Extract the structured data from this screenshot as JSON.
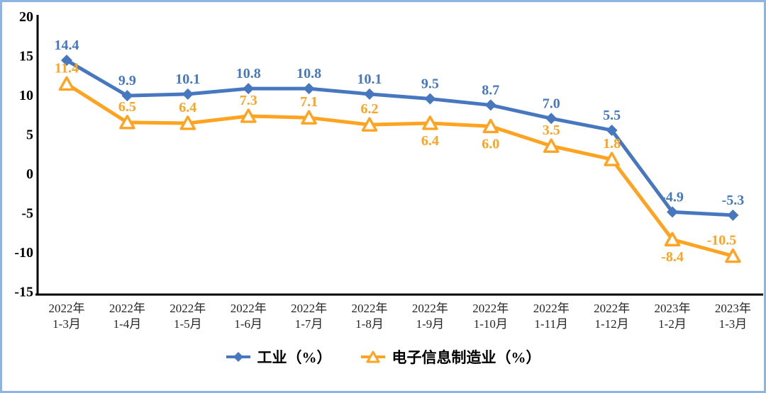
{
  "frame": {
    "border_color": "#8EB4E3",
    "background": "#FFFFFF"
  },
  "chart_data": {
    "type": "line",
    "title": "",
    "xlabel": "",
    "ylabel": "",
    "grid": false,
    "legend_position": "bottom",
    "categories": [
      {
        "line1": "2022年",
        "line2": "1-3月"
      },
      {
        "line1": "2022年",
        "line2": "1-4月"
      },
      {
        "line1": "2022年",
        "line2": "1-5月"
      },
      {
        "line1": "2022年",
        "line2": "1-6月"
      },
      {
        "line1": "2022年",
        "line2": "1-7月"
      },
      {
        "line1": "2022年",
        "line2": "1-8月"
      },
      {
        "line1": "2022年",
        "line2": "1-9月"
      },
      {
        "line1": "2022年",
        "line2": "1-10月"
      },
      {
        "line1": "2022年",
        "line2": "1-11月"
      },
      {
        "line1": "2022年",
        "line2": "1-12月"
      },
      {
        "line1": "2023年",
        "line2": "1-2月"
      },
      {
        "line1": "2023年",
        "line2": "1-3月"
      }
    ],
    "series": [
      {
        "name": "工业（%）",
        "marker": "diamond",
        "color": "#4677BF",
        "values": [
          14.4,
          9.9,
          10.1,
          10.8,
          10.8,
          10.1,
          9.5,
          8.7,
          7.0,
          5.5,
          -4.9,
          -5.3
        ]
      },
      {
        "name": "电子信息制造业（%）",
        "marker": "triangle",
        "color": "#FFA320",
        "values": [
          11.4,
          6.5,
          6.4,
          7.3,
          7.1,
          6.2,
          6.4,
          6.0,
          3.5,
          1.8,
          -8.4,
          -10.5
        ]
      }
    ],
    "y_axis": {
      "min": -15,
      "max": 20,
      "tick_step": 5,
      "ticks": [
        20,
        15,
        10,
        5,
        0,
        -5,
        -10,
        -15
      ]
    },
    "axis_color": "#000000",
    "x_label_color": "#262626"
  }
}
